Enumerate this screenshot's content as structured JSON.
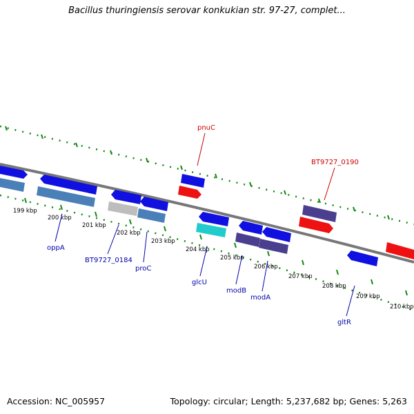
{
  "title": "Bacillus thuringiensis serovar konkukian str. 97-27, complet...",
  "footer": {
    "accession": "Accession: NC_005957",
    "summary": "Topology: circular; Length: 5,237,682 bp; Genes: 5,263"
  },
  "colors": {
    "blue": "#1010e0",
    "steelblue": "#4a7fb8",
    "red": "#ee1111",
    "slateblue": "#4a3f8f",
    "gray": "#bdbdbd",
    "cyan": "#22cccc",
    "tick_green": "#118811",
    "label_blue": "#0000aa",
    "label_red": "#cc0000"
  },
  "kbp_labels": [
    "199 kbp",
    "200 kbp",
    "201 kbp",
    "202 kbp",
    "203 kbp",
    "204 kbp",
    "205 kbp",
    "206 kbp",
    "207 kbp",
    "208 kbp",
    "209 kbp",
    "210 kbp"
  ],
  "gene_labels": [
    {
      "name": "pnuC",
      "color": "red"
    },
    {
      "name": "BT9727_0190",
      "color": "red"
    },
    {
      "name": "oppA",
      "color": "blue"
    },
    {
      "name": "BT9727_0184",
      "color": "blue"
    },
    {
      "name": "proC",
      "color": "blue"
    },
    {
      "name": "glcU",
      "color": "blue"
    },
    {
      "name": "modB",
      "color": "blue"
    },
    {
      "name": "modA",
      "color": "blue"
    },
    {
      "name": "gltR",
      "color": "blue"
    }
  ]
}
